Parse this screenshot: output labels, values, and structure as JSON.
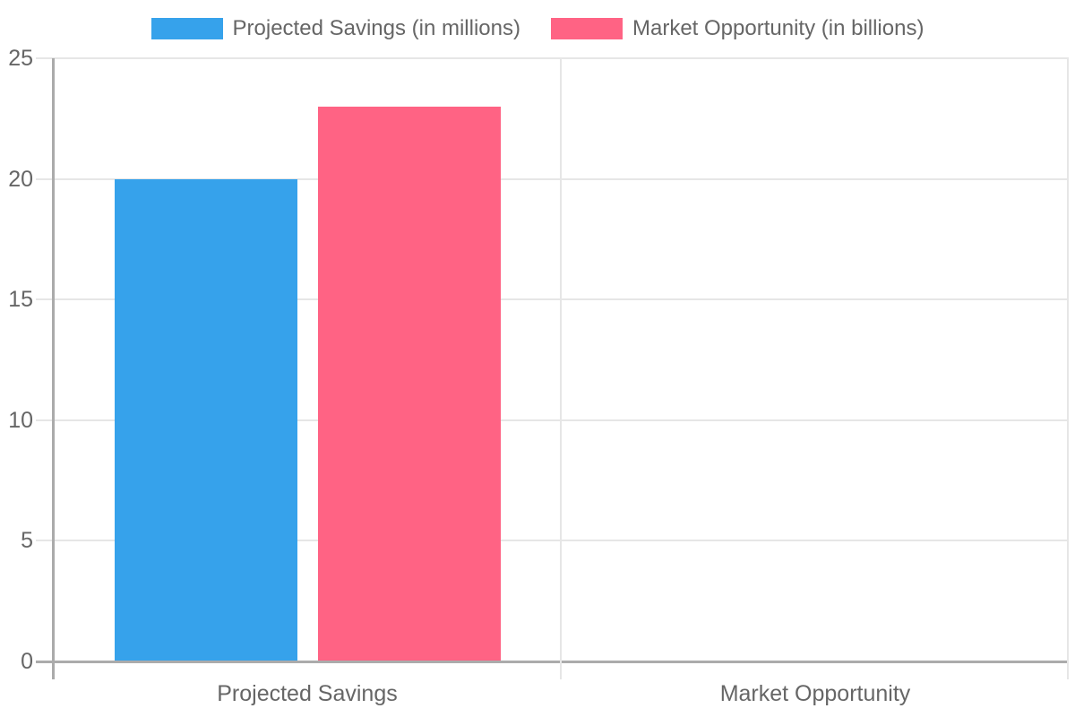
{
  "chart_data": {
    "type": "bar",
    "title": "",
    "categories": [
      "Projected Savings",
      "Market Opportunity"
    ],
    "series": [
      {
        "name": "Projected Savings (in millions)",
        "color": "#36A2EB",
        "values": [
          20,
          null
        ]
      },
      {
        "name": "Market Opportunity (in billions)",
        "color": "#FF6384",
        "values": [
          23,
          null
        ]
      }
    ],
    "xlabel": "",
    "ylabel": "",
    "ylim": [
      0,
      25
    ],
    "yticks": [
      0,
      5,
      10,
      15,
      20,
      25
    ],
    "grid": true,
    "legend_position": "top",
    "colors": {
      "grid": "#e6e6e6",
      "axis": "#ababab",
      "tick_text": "#666666",
      "background": "#ffffff"
    }
  }
}
